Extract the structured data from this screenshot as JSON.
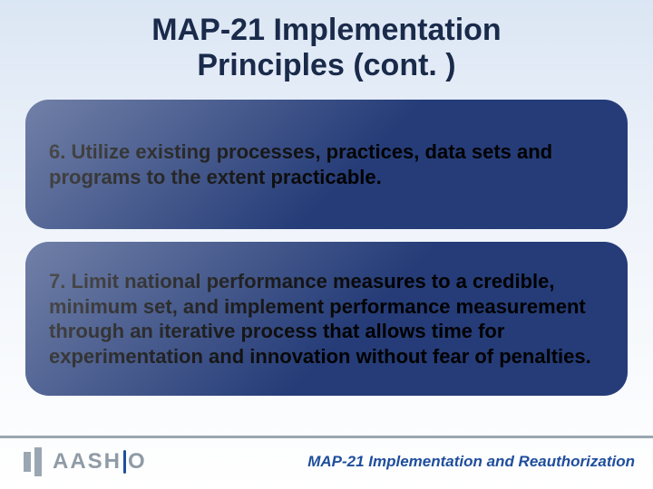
{
  "title_line1": "MAP-21 Implementation",
  "title_line2": "Principles (cont. )",
  "cards": {
    "item6": "6. Utilize existing processes, practices, data sets and programs to the extent practicable.",
    "item7": "7. Limit national performance measures to a credible, minimum set, and implement performance measurement through an iterative process that allows time for experimentation and innovation without fear of penalties."
  },
  "logo_text_before": "AASH",
  "logo_text_after": "O",
  "footer_label": "MAP-21 Implementation and Reauthorization",
  "colors": {
    "title_color": "#1a2a4a",
    "card_bg": "#253c78",
    "card_text": "#000000",
    "footer_line": "#9aa7b2",
    "logo_gray": "#8f9ba6",
    "logo_accent": "#1f4e9c",
    "corner_text": "#1f4e9c"
  },
  "fonts": {
    "title_size": 34,
    "card_size": 22,
    "logo_size": 24,
    "corner_size": 17
  }
}
